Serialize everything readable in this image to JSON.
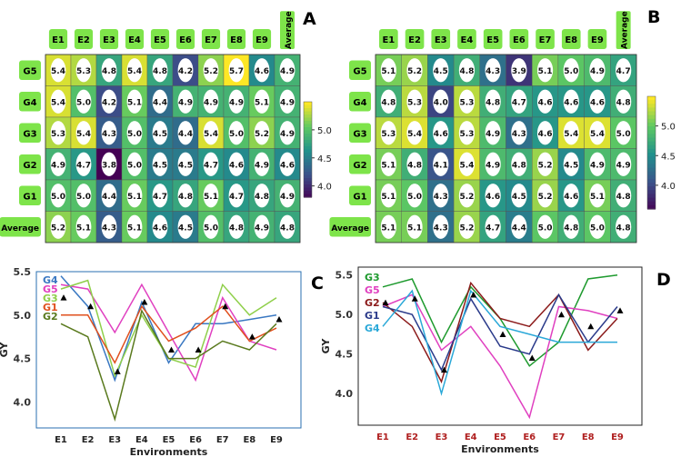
{
  "panel_labels": [
    "A",
    "B",
    "C",
    "D"
  ],
  "chart_data": [
    {
      "id": "A",
      "type": "heatmap",
      "x_categories": [
        "E1",
        "E2",
        "E3",
        "E4",
        "E5",
        "E6",
        "E7",
        "E8",
        "E9",
        "Average"
      ],
      "y_categories": [
        "G5",
        "G4",
        "G3",
        "G2",
        "G1",
        "Average"
      ],
      "values": [
        [
          5.4,
          5.3,
          4.8,
          5.4,
          4.8,
          4.2,
          5.2,
          5.7,
          4.6,
          4.9
        ],
        [
          5.4,
          5.0,
          4.2,
          5.1,
          4.4,
          4.9,
          4.9,
          4.9,
          5.1,
          4.9
        ],
        [
          5.3,
          5.4,
          4.3,
          5.0,
          4.5,
          4.4,
          5.4,
          5.0,
          5.2,
          4.9
        ],
        [
          4.9,
          4.7,
          3.8,
          5.0,
          4.5,
          4.5,
          4.7,
          4.6,
          4.9,
          4.6
        ],
        [
          5.0,
          5.0,
          4.4,
          5.1,
          4.7,
          4.8,
          5.1,
          4.7,
          4.8,
          4.9
        ],
        [
          5.2,
          5.1,
          4.3,
          5.1,
          4.6,
          4.5,
          5.0,
          4.8,
          4.9,
          4.8
        ]
      ],
      "colorbar": {
        "ticks": [
          "5.0",
          "4.5",
          "4.0"
        ],
        "tick_values": [
          5.0,
          4.5,
          4.0
        ],
        "range": [
          3.8,
          5.5
        ]
      }
    },
    {
      "id": "B",
      "type": "heatmap",
      "x_categories": [
        "E1",
        "E2",
        "E3",
        "E4",
        "E5",
        "E6",
        "E7",
        "E8",
        "E9",
        "Average"
      ],
      "y_categories": [
        "G5",
        "G4",
        "G3",
        "G2",
        "G1",
        "Average"
      ],
      "values": [
        [
          5.1,
          5.2,
          4.5,
          4.8,
          4.3,
          3.9,
          5.1,
          5.0,
          4.9,
          4.7
        ],
        [
          4.8,
          5.3,
          4.0,
          5.3,
          4.8,
          4.7,
          4.6,
          4.6,
          4.6,
          4.8
        ],
        [
          5.3,
          5.4,
          4.6,
          5.3,
          4.9,
          4.3,
          4.6,
          5.4,
          5.4,
          5.0
        ],
        [
          5.1,
          4.8,
          4.1,
          5.4,
          4.9,
          4.8,
          5.2,
          4.5,
          4.9,
          4.9
        ],
        [
          5.1,
          5.0,
          4.3,
          5.2,
          4.6,
          4.5,
          5.2,
          4.6,
          5.1,
          4.8
        ],
        [
          5.1,
          5.1,
          4.3,
          5.2,
          4.7,
          4.4,
          5.0,
          4.8,
          5.0,
          4.8
        ]
      ],
      "colorbar": {
        "ticks": [
          "5.0",
          "4.5",
          "4.0"
        ],
        "tick_values": [
          5.0,
          4.5,
          4.0
        ],
        "range": [
          3.6,
          5.5
        ]
      }
    },
    {
      "id": "C",
      "type": "line",
      "categories": [
        "E1",
        "E2",
        "E3",
        "E4",
        "E5",
        "E6",
        "E7",
        "E8",
        "E9"
      ],
      "xlabel": "Environments",
      "ylabel": "GY",
      "ylim": [
        3.7,
        5.5
      ],
      "yticks": [
        "5.5",
        "5.0",
        "4.5",
        "4.0"
      ],
      "ytick_values": [
        5.5,
        5.0,
        4.5,
        4.0
      ],
      "series": [
        {
          "name": "G4",
          "color": "#3a78c2",
          "values": [
            5.45,
            5.1,
            4.25,
            5.15,
            4.45,
            4.9,
            4.9,
            4.95,
            5.0
          ]
        },
        {
          "name": "G5",
          "color": "#e040c0",
          "values": [
            5.35,
            5.3,
            4.8,
            5.35,
            4.8,
            4.25,
            5.2,
            4.7,
            4.6
          ]
        },
        {
          "name": "G3",
          "color": "#8fcf4a",
          "values": [
            5.3,
            5.4,
            4.3,
            5.0,
            4.5,
            4.4,
            5.35,
            5.0,
            5.2
          ]
        },
        {
          "name": "G1",
          "color": "#e0501e",
          "values": [
            5.0,
            5.0,
            4.45,
            5.1,
            4.7,
            4.85,
            5.1,
            4.7,
            4.85
          ]
        },
        {
          "name": "G2",
          "color": "#5a7a1e",
          "values": [
            4.9,
            4.75,
            3.8,
            5.05,
            4.5,
            4.5,
            4.7,
            4.6,
            4.9
          ]
        }
      ],
      "average_markers": [
        5.2,
        5.1,
        4.35,
        5.15,
        4.6,
        4.6,
        5.1,
        4.75,
        4.95
      ]
    },
    {
      "id": "D",
      "type": "line",
      "categories": [
        "E1",
        "E2",
        "E3",
        "E4",
        "E5",
        "E6",
        "E7",
        "E8",
        "E9"
      ],
      "xlabel": "Environments",
      "ylabel": "GY",
      "ylim": [
        3.6,
        5.6
      ],
      "yticks": [
        "5.5",
        "5.0",
        "4.5",
        "4.0"
      ],
      "ytick_values": [
        5.5,
        5.0,
        4.5,
        4.0
      ],
      "series": [
        {
          "name": "G3",
          "color": "#1e9a2e",
          "values": [
            5.35,
            5.45,
            4.65,
            5.35,
            4.95,
            4.35,
            4.65,
            5.45,
            5.5
          ]
        },
        {
          "name": "G5",
          "color": "#e040c0",
          "values": [
            5.1,
            5.25,
            4.55,
            4.85,
            4.35,
            3.7,
            5.1,
            5.05,
            4.95
          ]
        },
        {
          "name": "G2",
          "color": "#8b1a1a",
          "values": [
            5.15,
            4.85,
            4.15,
            5.4,
            4.95,
            4.85,
            5.25,
            4.55,
            4.95
          ]
        },
        {
          "name": "G1",
          "color": "#2a3a8a",
          "values": [
            5.1,
            5.0,
            4.3,
            5.2,
            4.6,
            4.5,
            5.25,
            4.65,
            5.1
          ]
        },
        {
          "name": "G4",
          "color": "#2aa8d8",
          "values": [
            4.85,
            5.3,
            4.0,
            5.3,
            4.85,
            4.75,
            4.65,
            4.65,
            4.65
          ]
        }
      ],
      "average_markers": [
        5.15,
        5.2,
        4.3,
        5.25,
        4.75,
        4.45,
        5.0,
        4.85,
        5.05
      ]
    }
  ]
}
